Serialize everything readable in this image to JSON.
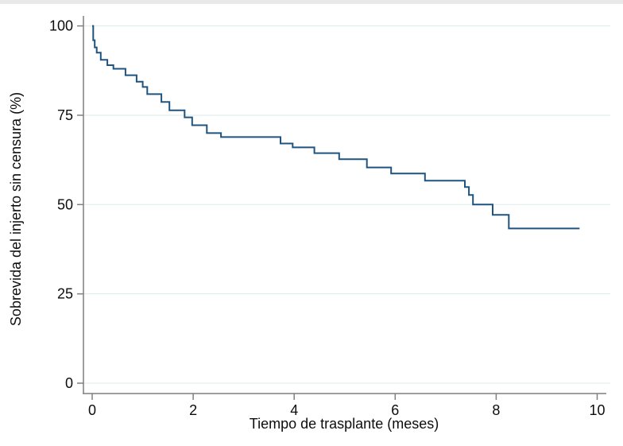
{
  "page": {
    "background": "#ffffff",
    "top_strip_color": "#e9e9e9"
  },
  "chart_data": {
    "type": "line",
    "subtype": "kaplan-meier-step",
    "title": "",
    "xlabel": "Tiempo de trasplante (meses)",
    "ylabel": "Sobrevida del injerto sin censura (%)",
    "xlim": [
      0,
      10
    ],
    "ylim": [
      0,
      100
    ],
    "x_ticks": [
      0,
      2,
      4,
      6,
      8,
      10
    ],
    "y_ticks": [
      0,
      25,
      50,
      75,
      100
    ],
    "grid": "horizontal",
    "legend": "none",
    "line_color": "#1f5380",
    "axis_color": "#7f7f7f",
    "grid_color": "#dfeaea",
    "series": [
      {
        "name": "Sobrevida del injerto sin censura",
        "points": [
          [
            0,
            100
          ],
          [
            0.02,
            96
          ],
          [
            0.05,
            94
          ],
          [
            0.09,
            92.5
          ],
          [
            0.17,
            90.5
          ],
          [
            0.3,
            89
          ],
          [
            0.42,
            88
          ],
          [
            0.66,
            86.2
          ],
          [
            0.88,
            84.4
          ],
          [
            1.0,
            82.9
          ],
          [
            1.09,
            80.9
          ],
          [
            1.37,
            78.7
          ],
          [
            1.53,
            76.4
          ],
          [
            1.83,
            74.4
          ],
          [
            1.98,
            72.2
          ],
          [
            2.27,
            70
          ],
          [
            2.55,
            68.9
          ],
          [
            3.73,
            67.1
          ],
          [
            3.97,
            66
          ],
          [
            4.4,
            64.4
          ],
          [
            4.89,
            62.7
          ],
          [
            5.44,
            60.4
          ],
          [
            5.92,
            58.7
          ],
          [
            6.59,
            56.7
          ],
          [
            7.38,
            54.9
          ],
          [
            7.46,
            52.7
          ],
          [
            7.54,
            50
          ],
          [
            7.93,
            47.1
          ],
          [
            8.25,
            43.3
          ]
        ],
        "end_time": 9.65,
        "final_value": 43.3
      }
    ]
  }
}
